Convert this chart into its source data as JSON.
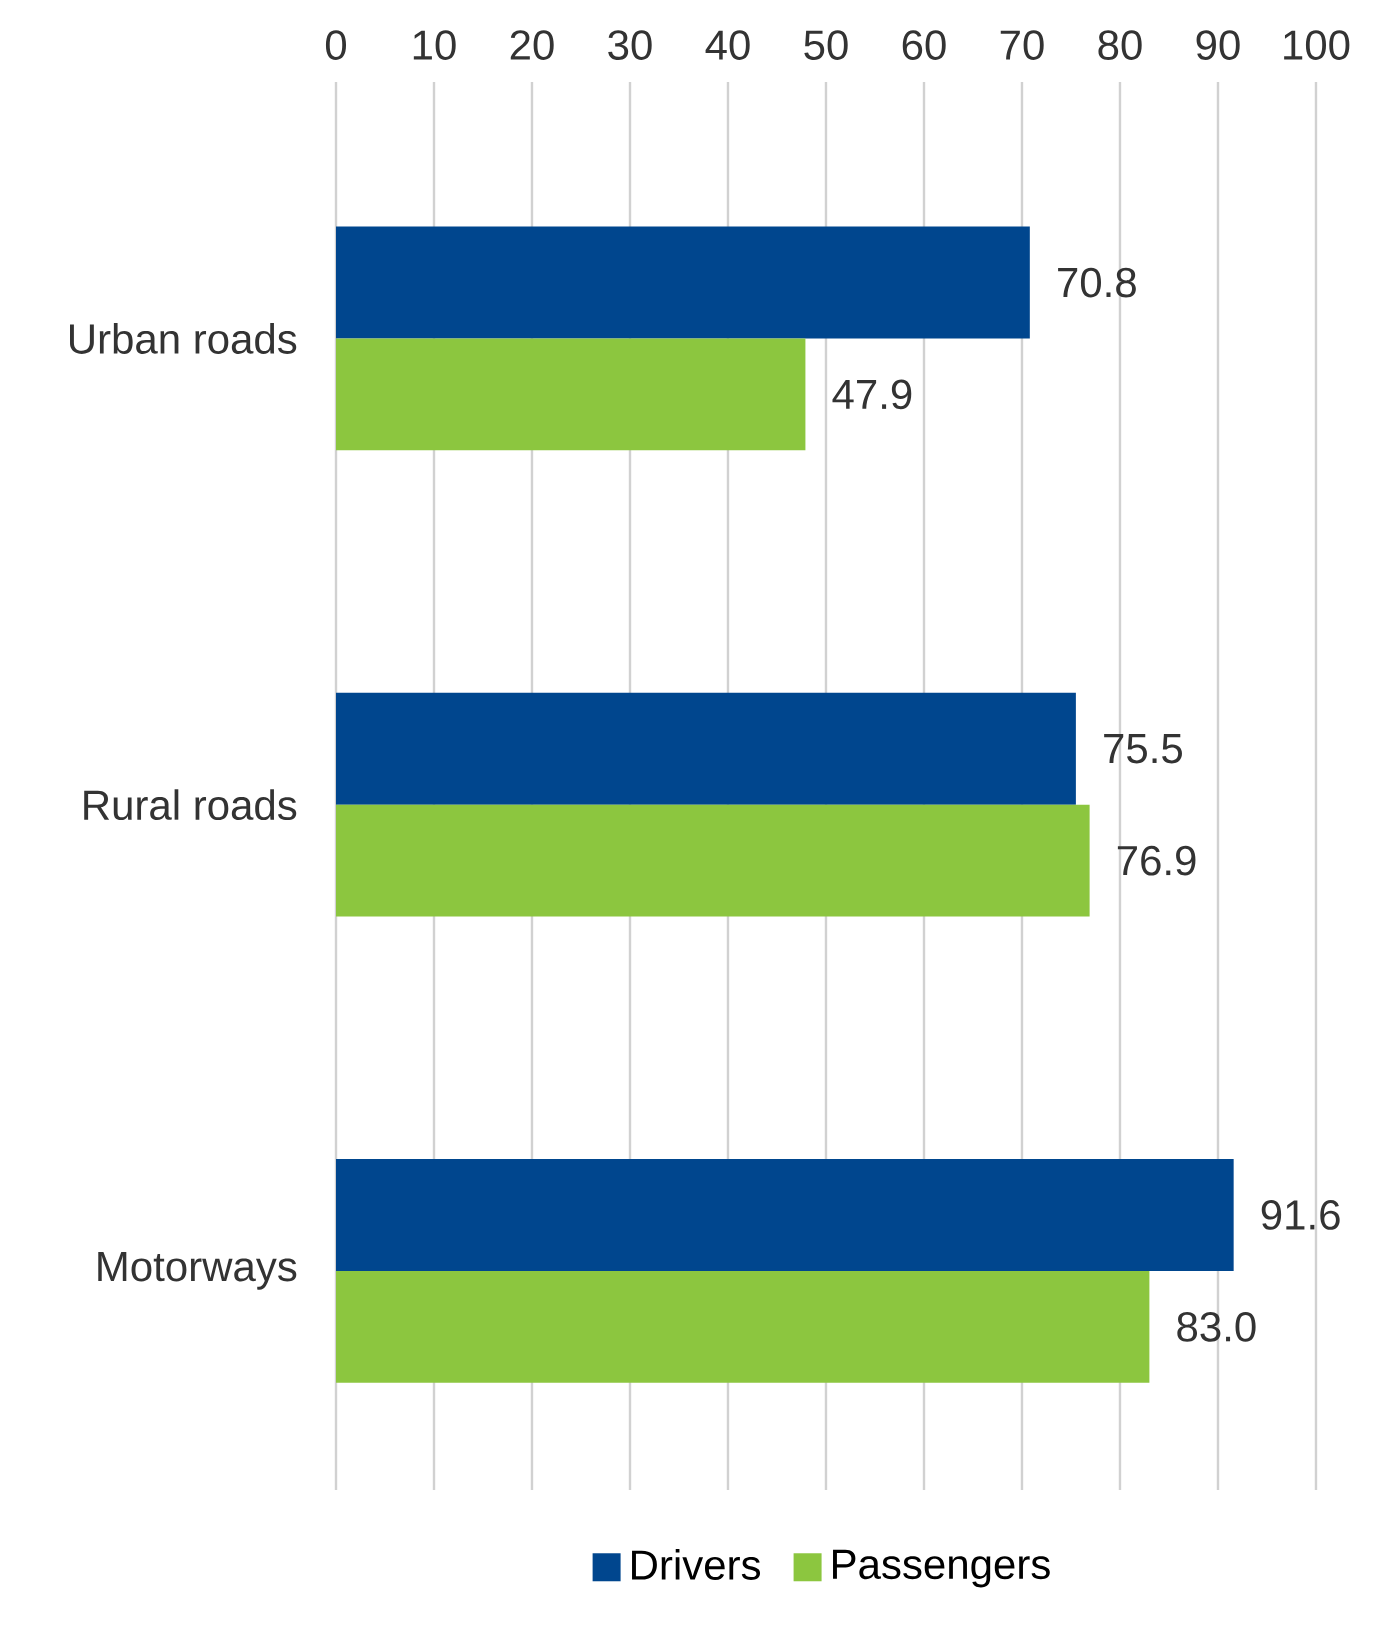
{
  "chart_data": {
    "type": "bar",
    "orientation": "horizontal",
    "categories": [
      "Urban roads",
      "Rural roads",
      "Motorways"
    ],
    "series": [
      {
        "name": "Drivers",
        "color": "#00468e",
        "values": [
          70.8,
          75.5,
          91.6
        ],
        "value_labels": [
          "70.8",
          "75.5",
          "91.6"
        ]
      },
      {
        "name": "Passengers",
        "color": "#8cc63f",
        "values": [
          47.9,
          76.9,
          83.0
        ],
        "value_labels": [
          "47.9",
          "76.9",
          "83.0"
        ]
      }
    ],
    "xlim": [
      0,
      100
    ],
    "xticks": [
      0,
      10,
      20,
      30,
      40,
      50,
      60,
      70,
      80,
      90,
      100
    ],
    "grid": "x",
    "legend": "bottom"
  }
}
